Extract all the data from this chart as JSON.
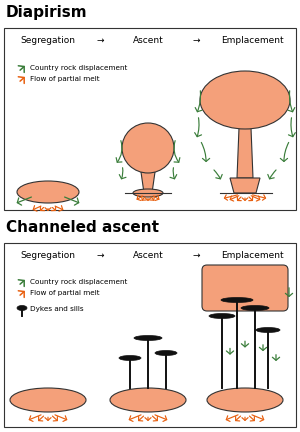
{
  "title_diapirism": "Diapirism",
  "title_channeled": "Channeled ascent",
  "legend_diapirism": [
    "Country rock displacement",
    "Flow of partial melt"
  ],
  "legend_channeled": [
    "Country rock displacement",
    "Flow of partial melt",
    "Dykes and sills"
  ],
  "melt_color": "#F4A07A",
  "melt_edge": "#333333",
  "arrow_green": "#3A7D3A",
  "arrow_orange": "#E86010",
  "dyke_color": "#111111",
  "bg_color": "#ffffff",
  "box_color": "#333333",
  "title_fontsize": 11,
  "header_fontsize": 6.5,
  "legend_fontsize": 5.2
}
